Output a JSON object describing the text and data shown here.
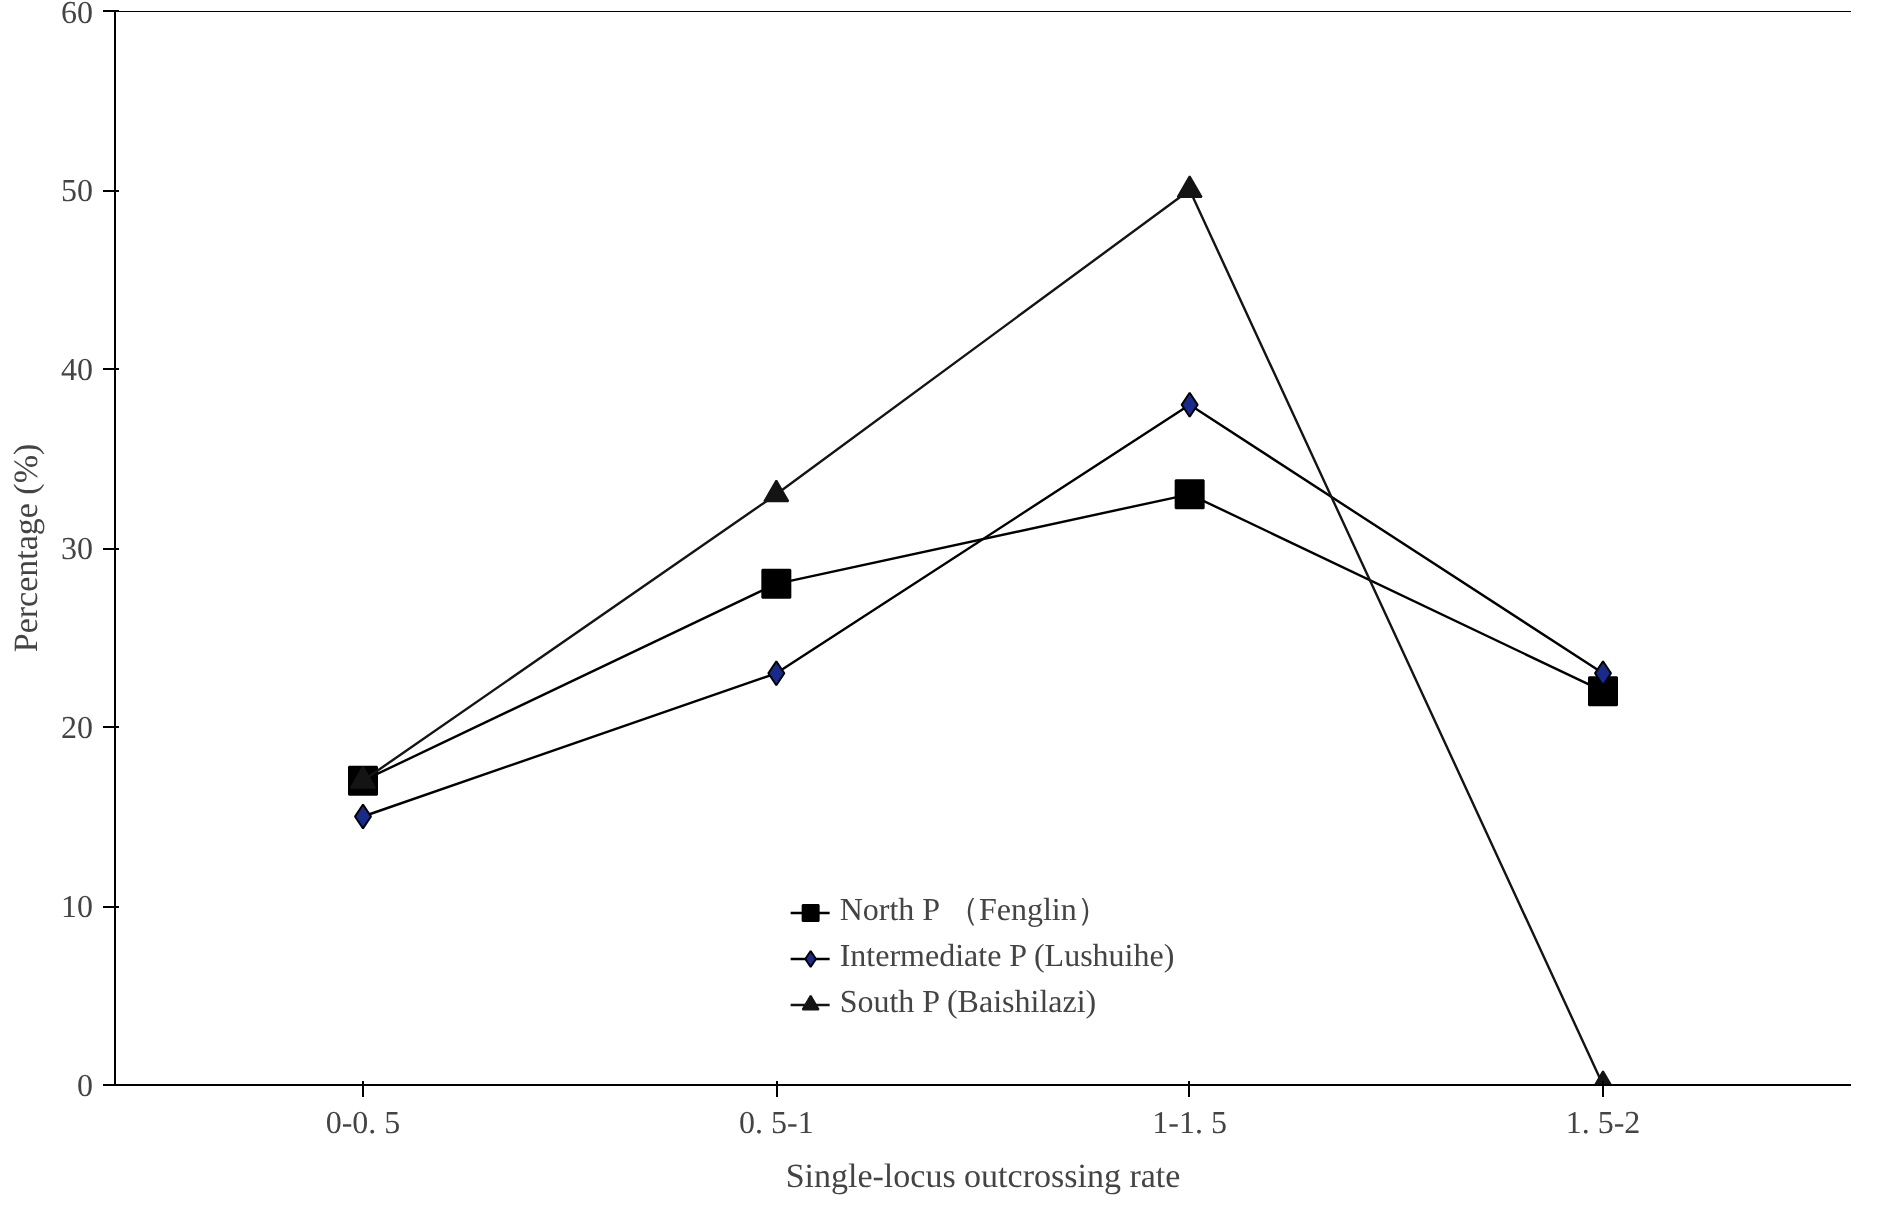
{
  "chart_data": {
    "type": "line",
    "xlabel": "Single-locus outcrossing rate",
    "ylabel": "Percentage (%)",
    "categories": [
      "0-0. 5",
      "0. 5-1",
      "1-1. 5",
      "1. 5-2"
    ],
    "ylim": [
      0,
      60
    ],
    "yticks": [
      0,
      10,
      20,
      30,
      40,
      50,
      60
    ],
    "grid": false,
    "legend": "bottom",
    "line_style": "solid",
    "series": [
      {
        "name": "North P （Fenglin）",
        "color": "#000000",
        "marker": "square",
        "values": [
          17,
          28,
          33,
          22
        ]
      },
      {
        "name": "Intermediate P (Lushuihe)",
        "color": "#000000",
        "marker": "diamond",
        "values": [
          15,
          23,
          38,
          23
        ]
      },
      {
        "name": "South P (Baishilazi)",
        "color": "#141414",
        "marker": "triangle",
        "values": [
          17,
          33,
          50,
          0
        ]
      }
    ]
  }
}
